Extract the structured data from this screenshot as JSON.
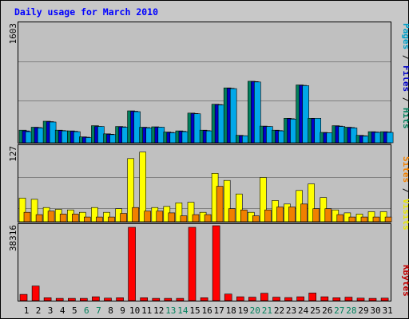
{
  "chart_data": {
    "type": "bar",
    "title": "Daily usage for March 2010",
    "categories": [
      "1",
      "2",
      "3",
      "4",
      "5",
      "6",
      "7",
      "8",
      "9",
      "10",
      "11",
      "12",
      "13",
      "14",
      "15",
      "16",
      "17",
      "18",
      "19",
      "20",
      "21",
      "22",
      "23",
      "24",
      "25",
      "26",
      "27",
      "28",
      "29",
      "30",
      "31"
    ],
    "weekend_days": [
      "6",
      "7",
      "13",
      "14",
      "20",
      "21",
      "27",
      "28"
    ],
    "panels": [
      {
        "id": "top",
        "max_label": "1603",
        "ymax": 1603,
        "legend": [
          {
            "text": "Pages",
            "color": "#00a0c8"
          },
          {
            "text": " / ",
            "color": "#000000"
          },
          {
            "text": "Files",
            "color": "#0000c8"
          },
          {
            "text": " / ",
            "color": "#000000"
          },
          {
            "text": "Hits",
            "color": "#00805c"
          }
        ],
        "series": [
          {
            "name": "Hits",
            "color": "#00805c",
            "values": [
              170,
              210,
              290,
              170,
              160,
              80,
              230,
              120,
              220,
              430,
              210,
              215,
              145,
              160,
              400,
              170,
              520,
              740,
              100,
              830,
              225,
              170,
              330,
              780,
              330,
              140,
              230,
              210,
              100,
              150,
              150
            ]
          },
          {
            "name": "Files",
            "color": "#0000c8",
            "values": [
              160,
              205,
              285,
              165,
              155,
              75,
              220,
              115,
              215,
              425,
              205,
              210,
              140,
              155,
              395,
              165,
              515,
              735,
              95,
              825,
              220,
              165,
              325,
              775,
              325,
              135,
              225,
              205,
              95,
              145,
              145
            ]
          },
          {
            "name": "Pages",
            "color": "#00a8e8",
            "values": [
              150,
              200,
              280,
              160,
              150,
              70,
              220,
              110,
              210,
              420,
              200,
              210,
              135,
              150,
              390,
              160,
              510,
              730,
              95,
              820,
              220,
              160,
              320,
              770,
              330,
              135,
              220,
              200,
              90,
              140,
              140
            ]
          }
        ]
      },
      {
        "id": "middle",
        "max_label": "127",
        "ymax": 127,
        "legend": [
          {
            "text": "Sites",
            "color": "#f08000"
          },
          {
            "text": " / ",
            "color": "#000000"
          },
          {
            "text": "Visits",
            "color": "#e8e800"
          }
        ],
        "series": [
          {
            "name": "Visits",
            "color": "#ffff00",
            "values": [
              40,
              38,
              24,
              21,
              20,
              16,
              24,
              16,
              22,
              107,
              118,
              24,
              26,
              32,
              33,
              16,
              82,
              70,
              47,
              16,
              75,
              36,
              30,
              53,
              64,
              41,
              20,
              15,
              13,
              17,
              17
            ]
          },
          {
            "name": "Sites",
            "color": "#f08000",
            "values": [
              16,
              12,
              18,
              13,
              13,
              8,
              8,
              8,
              14,
              24,
              18,
              18,
              15,
              10,
              12,
              12,
              60,
              22,
              20,
              10,
              20,
              25,
              25,
              30,
              22,
              22,
              12,
              8,
              8,
              8,
              8
            ]
          }
        ]
      },
      {
        "id": "bottom",
        "max_label": "38316",
        "ymax": 38316,
        "legend": [
          {
            "text": "KBytes",
            "color": "#c00000"
          }
        ],
        "series": [
          {
            "name": "KBytes",
            "color": "#ff0000",
            "values": [
              3200,
              7500,
              1500,
              1200,
              1200,
              1200,
              2000,
              1300,
              1500,
              37500,
              1500,
              1200,
              1200,
              1200,
              37500,
              1500,
              38316,
              3400,
              2000,
              1800,
              3800,
              1800,
              1600,
              2000,
              3900,
              2000,
              1500,
              1800,
              1300,
              1200,
              1300
            ]
          }
        ]
      }
    ]
  }
}
